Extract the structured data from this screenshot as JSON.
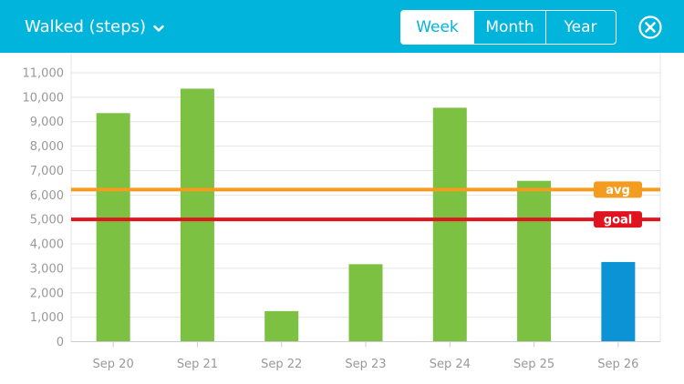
{
  "header": {
    "title": "Walked (steps)",
    "tabs": [
      {
        "label": "Week",
        "active": true
      },
      {
        "label": "Month",
        "active": false
      },
      {
        "label": "Year",
        "active": false
      }
    ],
    "dropdown_icon": "chevron-down-icon",
    "close_icon": "close-circle-icon"
  },
  "colors": {
    "header_bg": "#00b4dc",
    "bar": "#7cc142",
    "bar_today": "#0b93d6",
    "avg": "#f39c1f",
    "goal": "#e0141e",
    "grid": "#e4e4e4",
    "tick_text": "#999999"
  },
  "chart_data": {
    "type": "bar",
    "categories": [
      "Sep 20",
      "Sep 21",
      "Sep 22",
      "Sep 23",
      "Sep 24",
      "Sep 25",
      "Sep 26"
    ],
    "values": [
      9350,
      10350,
      1250,
      3170,
      9570,
      6580,
      3260
    ],
    "highlight_index": 6,
    "ylim": [
      0,
      11000
    ],
    "yticks": [
      0,
      1000,
      2000,
      3000,
      4000,
      5000,
      6000,
      7000,
      8000,
      9000,
      10000,
      11000
    ],
    "ytick_labels": [
      "0",
      "1,000",
      "2,000",
      "3,000",
      "4,000",
      "5,000",
      "6,000",
      "7,000",
      "8,000",
      "9,000",
      "10,000",
      "11,000"
    ],
    "grid": true,
    "reference_lines": [
      {
        "label": "avg",
        "value": 6220
      },
      {
        "label": "goal",
        "value": 5000
      }
    ]
  }
}
